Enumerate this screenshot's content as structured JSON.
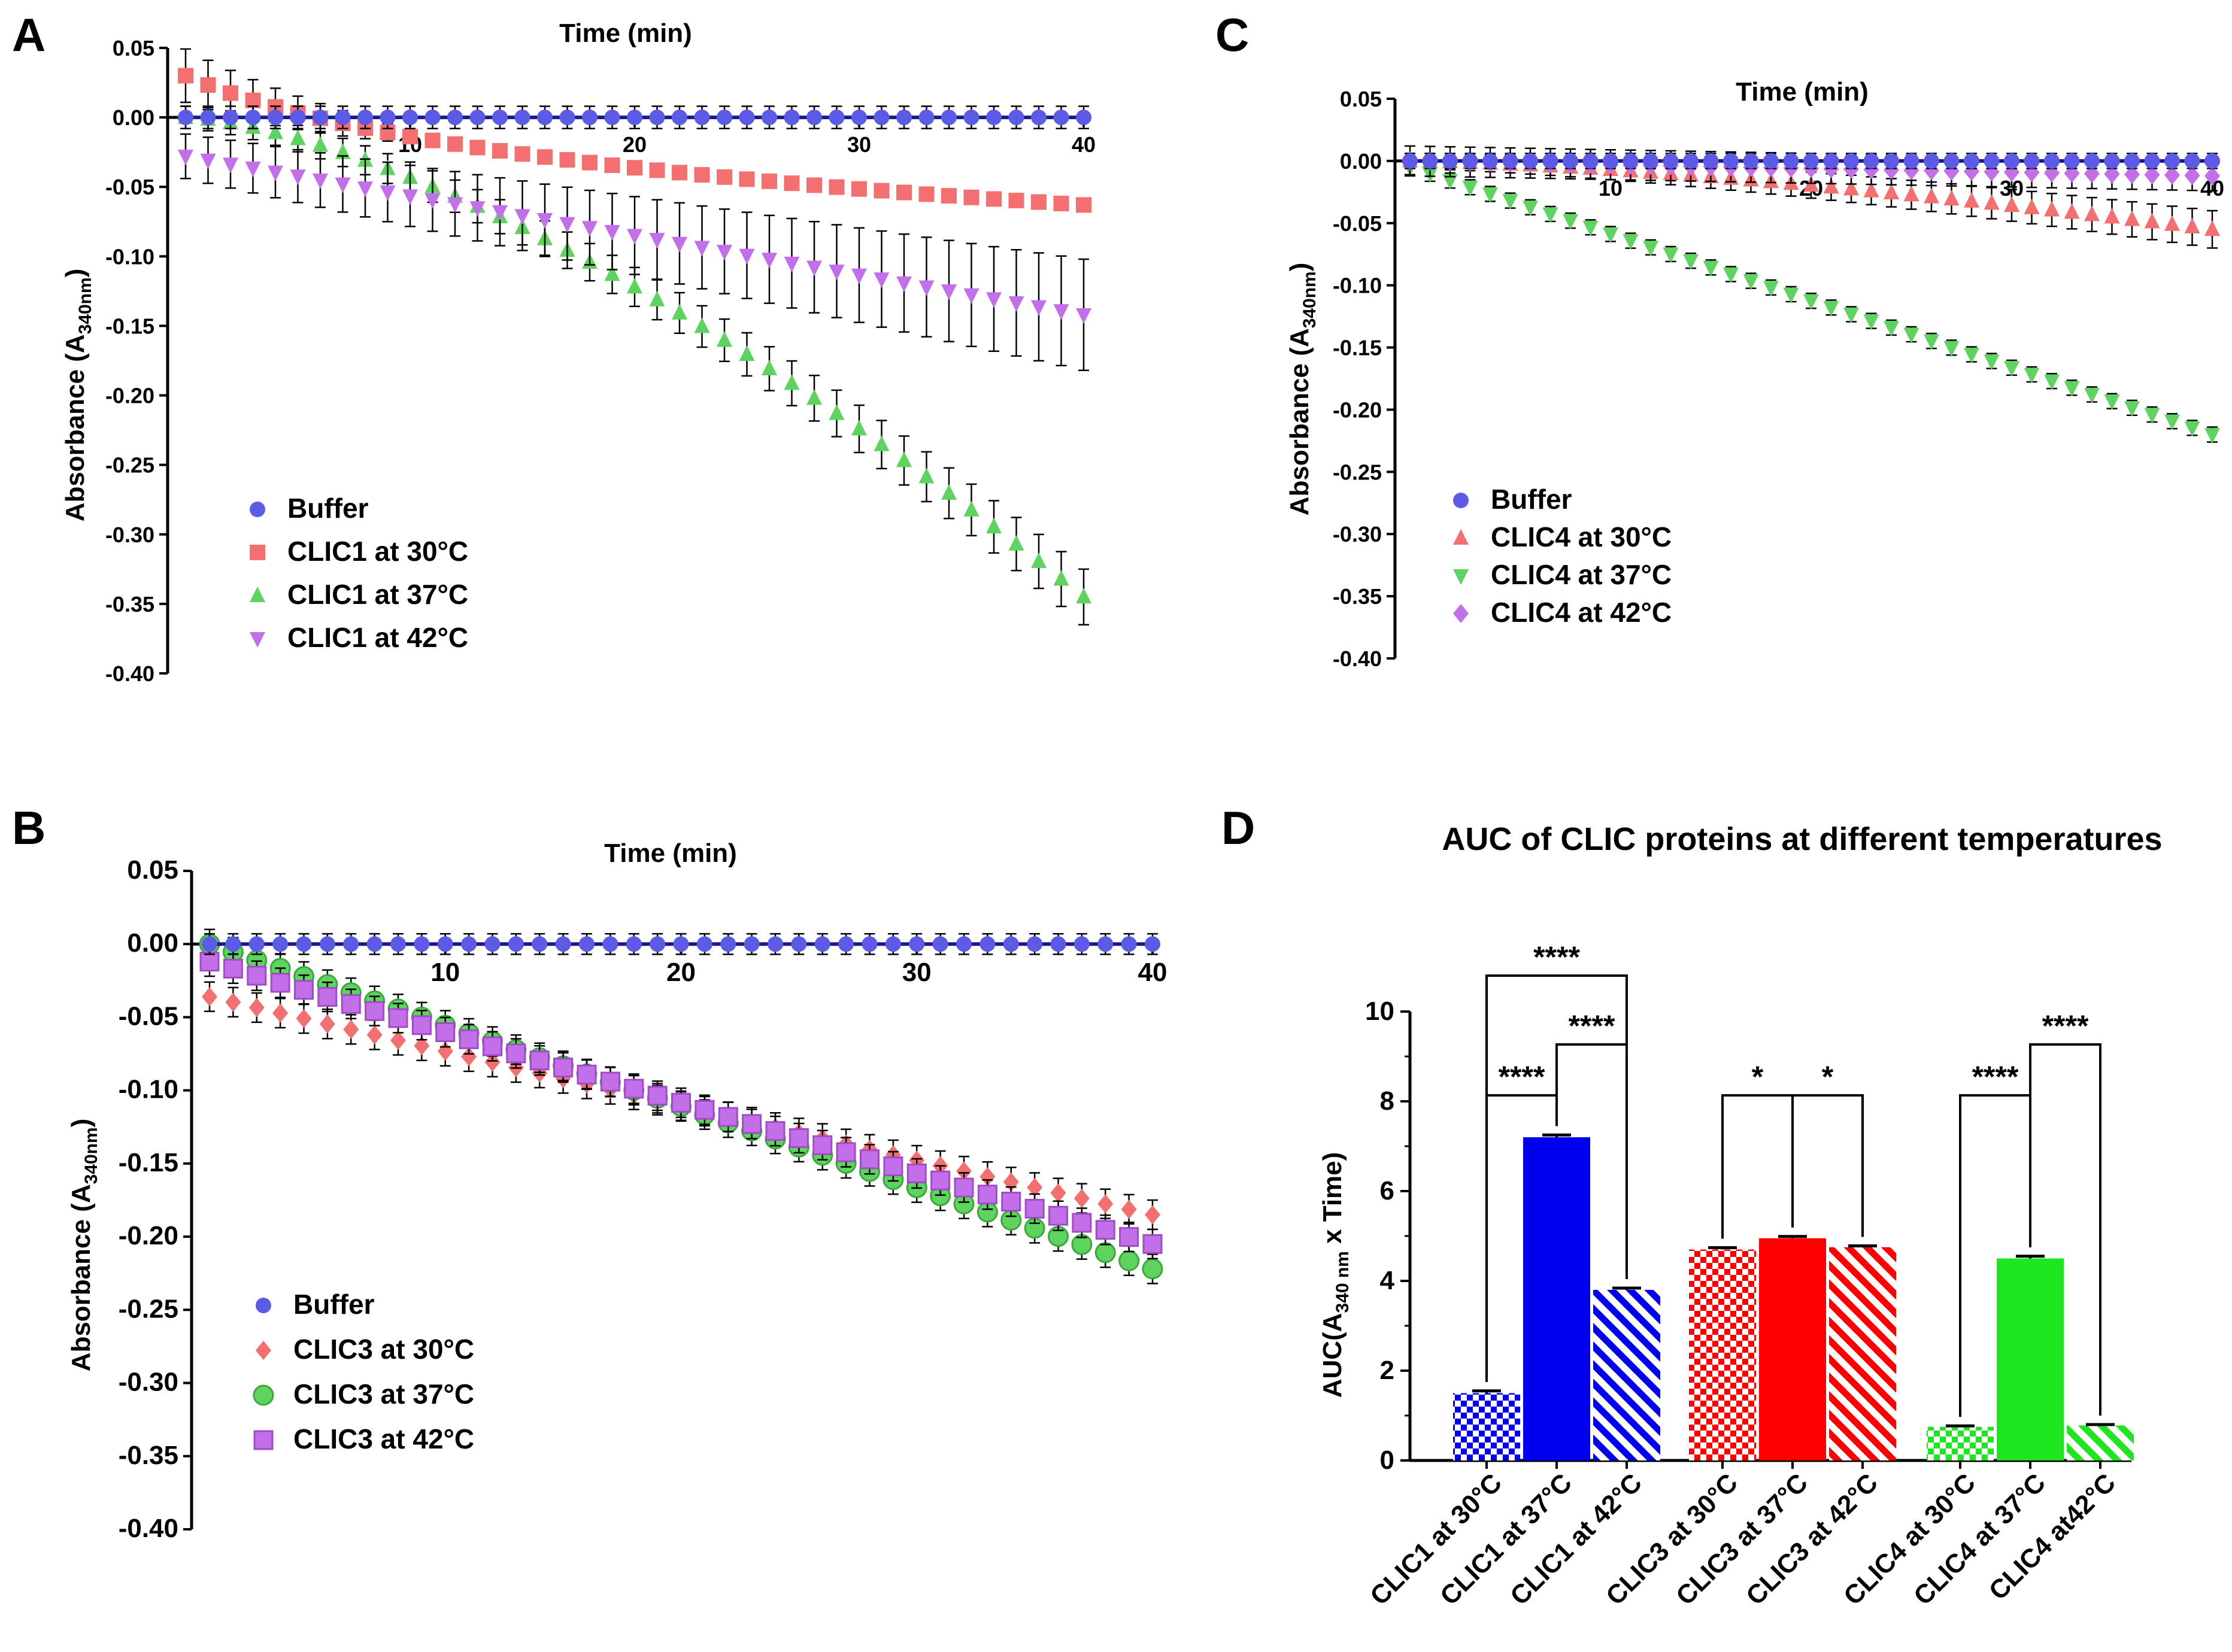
{
  "panels": [
    {
      "letter": "A",
      "x_label": "Time (min)",
      "y_label": "Absorbance (A",
      "y_label_sub": "340nm",
      "y_label_end": ")",
      "x_ticks": [
        10,
        20,
        30,
        40
      ],
      "y_ticks": [
        "0.05",
        "0.00",
        "-0.05",
        "-0.10",
        "-0.15",
        "-0.20",
        "-0.25",
        "-0.30",
        "-0.35",
        "-0.40"
      ],
      "xlim": [
        0,
        40
      ],
      "ylim": [
        -0.4,
        0.05
      ],
      "series": [
        {
          "name": "Buffer",
          "color": "#5b5be8",
          "marker": "circle",
          "start": 0,
          "end": 0,
          "shape": "linear",
          "err": 0.008,
          "errShape": "const"
        },
        {
          "name": "CLIC1 at 30°C",
          "color": "#f46f6f",
          "marker": "square",
          "start": 0.03,
          "end": -0.063,
          "shape": "log",
          "err": 0.012,
          "errShape": "early"
        },
        {
          "name": "CLIC1 at 37°C",
          "color": "#5fd35f",
          "marker": "triangle-up",
          "start": 0.0,
          "end": -0.345,
          "shape": "pow",
          "err": 0.02,
          "errShape": "grow"
        },
        {
          "name": "CLIC1 at 42°C",
          "color": "#c46fea",
          "marker": "triangle-down",
          "start": -0.028,
          "end": -0.142,
          "shape": "linear",
          "err": 0.04,
          "errShape": "grow"
        }
      ]
    },
    {
      "letter": "B",
      "x_label": "Time (min)",
      "y_label": "Absorbance (A",
      "y_label_sub": "340nm",
      "y_label_end": ")",
      "x_ticks": [
        10,
        20,
        30,
        40
      ],
      "y_ticks": [
        "0.05",
        "0.00",
        "-0.05",
        "-0.10",
        "-0.15",
        "-0.20",
        "-0.25",
        "-0.30",
        "-0.35",
        "-0.40"
      ],
      "xlim": [
        0,
        40
      ],
      "ylim": [
        -0.4,
        0.05
      ],
      "series": [
        {
          "name": "Buffer",
          "color": "#5b5be8",
          "marker": "circle",
          "start": 0,
          "end": 0,
          "shape": "linear",
          "err": 0.007,
          "errShape": "const"
        },
        {
          "name": "CLIC3 at 30°C",
          "color": "#f46f6f",
          "marker": "diamond",
          "start": -0.036,
          "end": -0.185,
          "shape": "linear",
          "err": 0.01,
          "errShape": "const"
        },
        {
          "name": "CLIC3 at 37°C",
          "color": "#5fd35f",
          "marker": "circle-edge",
          "start": 0.0,
          "end": -0.222,
          "shape": "linear",
          "err": 0.01,
          "errShape": "const"
        },
        {
          "name": "CLIC3 at 42°C",
          "color": "#c46fea",
          "marker": "square-edge",
          "start": -0.012,
          "end": -0.205,
          "shape": "linear",
          "err": 0.01,
          "errShape": "const"
        }
      ]
    },
    {
      "letter": "C",
      "x_label": "Time (min)",
      "y_label": "Absorbance (A",
      "y_label_sub": "340nm",
      "y_label_end": ")",
      "x_ticks": [
        10,
        20,
        30,
        40
      ],
      "y_ticks": [
        "0.05",
        "0.00",
        "-0.05",
        "-0.10",
        "-0.15",
        "-0.20",
        "-0.25",
        "-0.30",
        "-0.35",
        "-0.40"
      ],
      "xlim": [
        0,
        40
      ],
      "ylim": [
        -0.4,
        0.05
      ],
      "series": [
        {
          "name": "Buffer",
          "color": "#5b5be8",
          "marker": "circle",
          "start": 0,
          "end": 0,
          "shape": "linear",
          "err": 0.006,
          "errShape": "const"
        },
        {
          "name": "CLIC4 at 30°C",
          "color": "#f46f6f",
          "marker": "triangle-up",
          "start": 0.0,
          "end": -0.055,
          "shape": "pow",
          "err": 0.015,
          "errShape": "grow"
        },
        {
          "name": "CLIC4 at 37°C",
          "color": "#5fd35f",
          "marker": "triangle-down",
          "start": -0.005,
          "end": -0.22,
          "shape": "linear",
          "err": 0.006,
          "errShape": "const"
        },
        {
          "name": "CLIC4 at 42°C",
          "color": "#c46fea",
          "marker": "diamond",
          "start": 0.0,
          "end": -0.012,
          "shape": "linear",
          "err": 0.012,
          "errShape": "const"
        }
      ]
    }
  ],
  "chart_data": [
    {
      "type": "scatter",
      "panel": "A",
      "xlabel": "Time (min)",
      "ylabel": "Absorbance (A340nm)",
      "xlim": [
        0,
        40
      ],
      "ylim": [
        -0.4,
        0.05
      ],
      "series": [
        {
          "name": "Buffer",
          "x_range": [
            0,
            40
          ],
          "y_start": 0.0,
          "y_end": 0.0
        },
        {
          "name": "CLIC1 at 30°C",
          "x_range": [
            0,
            40
          ],
          "y_start": 0.03,
          "y_end": -0.063
        },
        {
          "name": "CLIC1 at 37°C",
          "x_range": [
            0,
            40
          ],
          "y_start": 0.0,
          "y_end": -0.345
        },
        {
          "name": "CLIC1 at 42°C",
          "x_range": [
            0,
            40
          ],
          "y_start": -0.028,
          "y_end": -0.142
        }
      ]
    },
    {
      "type": "scatter",
      "panel": "B",
      "xlabel": "Time (min)",
      "ylabel": "Absorbance (A340nm)",
      "xlim": [
        0,
        40
      ],
      "ylim": [
        -0.4,
        0.05
      ],
      "series": [
        {
          "name": "Buffer",
          "x_range": [
            0,
            40
          ],
          "y_start": 0.0,
          "y_end": 0.0
        },
        {
          "name": "CLIC3 at 30°C",
          "x_range": [
            0,
            40
          ],
          "y_start": -0.036,
          "y_end": -0.185
        },
        {
          "name": "CLIC3 at 37°C",
          "x_range": [
            0,
            40
          ],
          "y_start": 0.0,
          "y_end": -0.222
        },
        {
          "name": "CLIC3 at 42°C",
          "x_range": [
            0,
            40
          ],
          "y_start": -0.012,
          "y_end": -0.205
        }
      ]
    },
    {
      "type": "scatter",
      "panel": "C",
      "xlabel": "Time (min)",
      "ylabel": "Absorbance (A340nm)",
      "xlim": [
        0,
        40
      ],
      "ylim": [
        -0.4,
        0.05
      ],
      "series": [
        {
          "name": "Buffer",
          "x_range": [
            0,
            40
          ],
          "y_start": 0.0,
          "y_end": 0.0
        },
        {
          "name": "CLIC4 at 30°C",
          "x_range": [
            0,
            40
          ],
          "y_start": 0.0,
          "y_end": -0.055
        },
        {
          "name": "CLIC4 at 37°C",
          "x_range": [
            0,
            40
          ],
          "y_start": -0.005,
          "y_end": -0.22
        },
        {
          "name": "CLIC4 at 42°C",
          "x_range": [
            0,
            40
          ],
          "y_start": 0.0,
          "y_end": -0.012
        }
      ]
    },
    {
      "type": "bar",
      "panel": "D",
      "title": "AUC of CLIC proteins at different temperatures",
      "ylabel": "AUC(A340 nm x Time)",
      "ylim": [
        0,
        10
      ],
      "y_ticks": [
        0,
        2,
        4,
        6,
        8,
        10
      ],
      "categories": [
        "CLIC1 at 30°C",
        "CLIC1 at 37°C",
        "CLIC1 at 42°C",
        "CLIC3 at 30°C",
        "CLIC3 at 37°C",
        "CLIC3 at 42°C",
        "CLIC4 at 30°C",
        "CLIC4 at 37°C",
        "CLIC4 at42°C"
      ],
      "values": [
        1.5,
        7.2,
        3.8,
        4.7,
        4.95,
        4.75,
        0.75,
        4.5,
        0.78
      ],
      "errors": [
        0.05,
        0.05,
        0.04,
        0.04,
        0.04,
        0.03,
        0.02,
        0.05,
        0.02
      ],
      "colors": [
        "#0000ee",
        "#0000ee",
        "#0000ee",
        "#ff0000",
        "#ff0000",
        "#ff0000",
        "#1ee61e",
        "#1ee61e",
        "#1ee61e"
      ],
      "patterns": [
        "check",
        "solid",
        "stripe",
        "check",
        "solid",
        "stripe",
        "check",
        "solid",
        "stripe"
      ],
      "significance": [
        {
          "from": 0,
          "to": 1,
          "label": "****"
        },
        {
          "from": 0,
          "to": 2,
          "label": "****"
        },
        {
          "from": 1,
          "to": 2,
          "label": "****"
        },
        {
          "from": 3,
          "to": 4,
          "label": "*"
        },
        {
          "from": 4,
          "to": 5,
          "label": "*"
        },
        {
          "from": 6,
          "to": 7,
          "label": "****"
        },
        {
          "from": 7,
          "to": 8,
          "label": "****"
        }
      ]
    }
  ],
  "panel_d": {
    "letter": "D",
    "title": "AUC of CLIC proteins at different temperatures",
    "y_label": "AUC(A",
    "y_label_sub": "340 nm",
    "y_label_end": " x Time)",
    "y_ticks": [
      "0",
      "2",
      "4",
      "6",
      "8",
      "10"
    ]
  }
}
